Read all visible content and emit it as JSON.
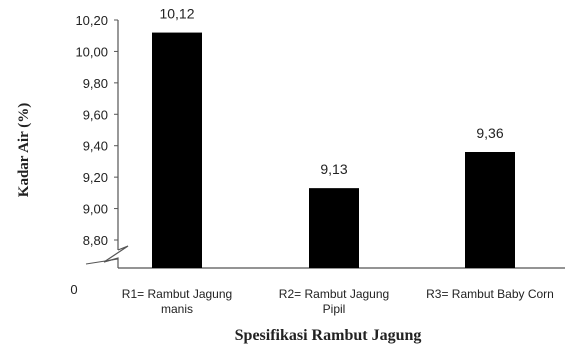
{
  "chart_data": {
    "type": "bar",
    "title": "",
    "xlabel": "Spesifikasi Rambut Jagung",
    "ylabel": "Kadar Air (%)",
    "categories": [
      [
        "R1=  Rambut Jagung",
        "manis"
      ],
      [
        "R2= Rambut Jagung",
        "Pipil"
      ],
      [
        "R3= Rambut Baby Corn"
      ]
    ],
    "values": [
      10.12,
      9.13,
      9.36
    ],
    "value_labels": [
      "10,12",
      "9,13",
      "9,36"
    ],
    "ylim": [
      8.8,
      10.2
    ],
    "y_ticks": [
      8.8,
      9.0,
      9.2,
      9.4,
      9.6,
      9.8,
      10.0,
      10.2
    ],
    "y_tick_labels": [
      "8,80",
      "9,00",
      "9,20",
      "9,40",
      "9,60",
      "9,80",
      "10,00",
      "10,20"
    ],
    "zero_label": "0",
    "axis_break": true,
    "grid": false,
    "bar_color": "#000000",
    "axis_color": "#555555"
  }
}
